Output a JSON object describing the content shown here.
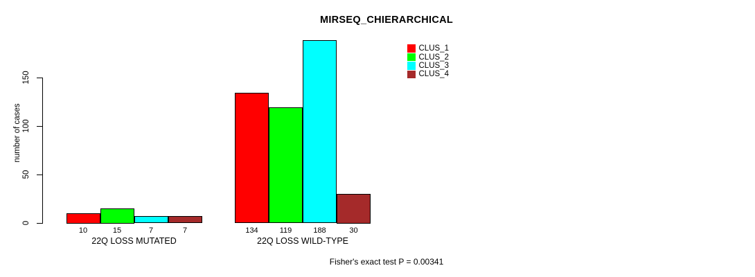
{
  "chart_data": {
    "type": "bar",
    "title": "MIRSEQ_CHIERARCHICAL",
    "ylabel": "number of cases",
    "xlabel": "",
    "groups": [
      "22Q LOSS MUTATED",
      "22Q LOSS WILD-TYPE"
    ],
    "series": [
      {
        "name": "CLUS_1",
        "color": "#ff0000",
        "values": [
          10,
          134
        ]
      },
      {
        "name": "CLUS_2",
        "color": "#00ff00",
        "values": [
          15,
          119
        ]
      },
      {
        "name": "CLUS_3",
        "color": "#00ffff",
        "values": [
          7,
          188
        ]
      },
      {
        "name": "CLUS_4",
        "color": "#a52a2a",
        "values": [
          7,
          30
        ]
      }
    ],
    "yticks": [
      0,
      50,
      100,
      150
    ],
    "ylim": [
      0,
      195
    ],
    "grid": false,
    "bar_value_labels": true,
    "legend_position": "top-right",
    "bar_border_color": "#000000",
    "background": "#ffffff",
    "annotation": "Fisher's exact test P = 0.00341"
  }
}
